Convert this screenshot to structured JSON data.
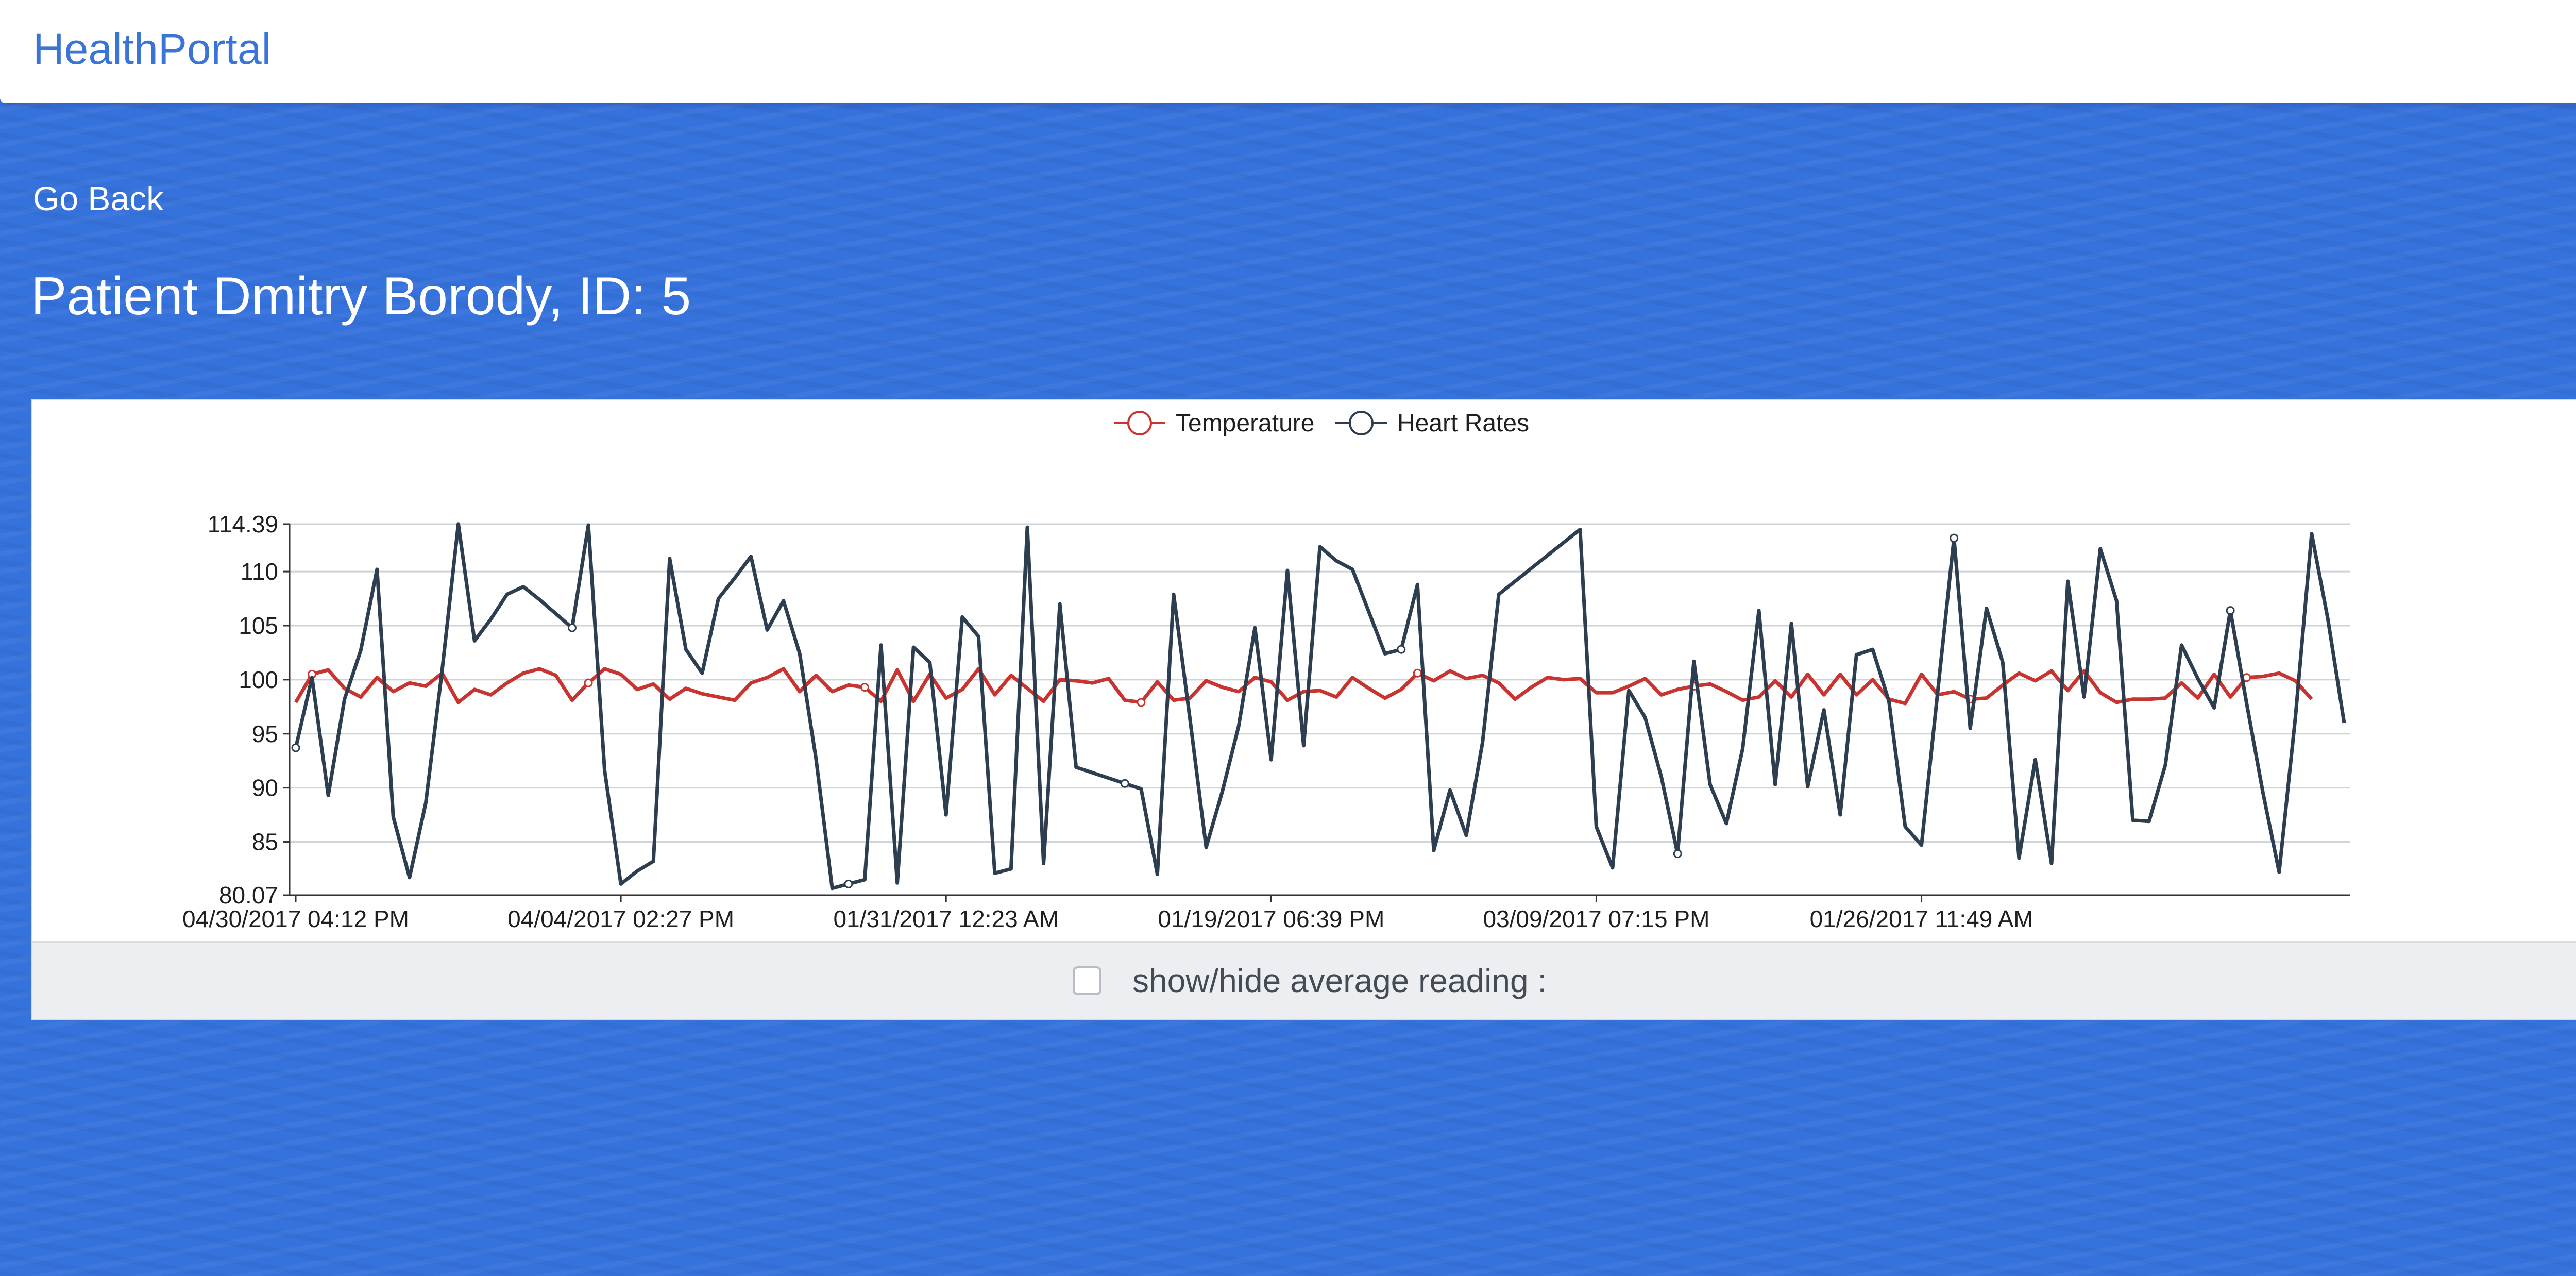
{
  "app": {
    "brand": "HealthPortal"
  },
  "nav": {
    "go_back_label": "Go Back"
  },
  "patient": {
    "title": "Patient Dmitry Borody, ID: 5"
  },
  "controls": {
    "average_toggle_label": "show/hide average reading :",
    "average_checked": false
  },
  "colors": {
    "temperature": "#c8342f",
    "heart_rate": "#2c3e50",
    "accent": "#3572dc"
  },
  "chart_data": {
    "type": "line",
    "legend_position": "top-center",
    "grid": true,
    "title": "",
    "xlabel": "",
    "ylabel": "",
    "ylim": [
      80.07,
      114.39
    ],
    "y_ticks": [
      "80.07",
      "85",
      "90",
      "95",
      "100",
      "105",
      "110",
      "114.39"
    ],
    "x_tick_labels": [
      "04/30/2017 04:12 PM",
      "04/04/2017 02:27 PM",
      "01/31/2017 12:23 AM",
      "01/19/2017 06:39 PM",
      "03/09/2017 07:15 PM",
      "01/26/2017 11:49 AM"
    ],
    "x_tick_indices": [
      0,
      20,
      40,
      60,
      80,
      100
    ],
    "series": [
      {
        "name": "Temperature",
        "values": [
          97.9,
          100.5,
          100.9,
          99.2,
          98.4,
          100.2,
          98.9,
          99.7,
          99.4,
          100.6,
          97.9,
          99.1,
          98.6,
          99.7,
          100.6,
          101.0,
          100.4,
          98.1,
          99.7,
          101.0,
          100.5,
          99.1,
          99.6,
          98.2,
          99.2,
          98.7,
          98.4,
          98.1,
          99.7,
          100.2,
          101.0,
          98.9,
          100.4,
          98.9,
          99.5,
          99.3,
          98.0,
          100.9,
          98.0,
          100.5,
          98.3,
          99.1,
          101.0,
          98.6,
          100.4,
          99.2,
          98.0,
          100.0,
          99.9,
          99.7,
          100.1,
          98.1,
          97.9,
          99.8,
          98.1,
          98.3,
          99.9,
          99.3,
          98.9,
          100.2,
          99.8,
          98.1,
          98.9,
          99.0,
          98.4,
          100.2,
          99.2,
          98.3,
          99.1,
          100.6,
          99.9,
          100.8,
          100.1,
          100.4,
          99.7,
          98.2,
          99.3,
          100.2,
          100.0,
          100.1,
          98.8,
          98.8,
          99.4,
          100.1,
          98.6,
          99.1,
          99.4,
          99.6,
          98.9,
          98.1,
          98.4,
          99.9,
          98.4,
          100.5,
          98.6,
          100.5,
          98.6,
          100.0,
          98.2,
          97.8,
          100.5,
          98.6,
          98.9,
          98.2,
          98.3,
          99.5,
          100.6,
          99.9,
          100.8,
          99.0,
          100.8,
          98.8,
          97.9,
          98.2,
          98.2,
          98.3,
          99.7,
          98.3,
          100.5,
          98.4,
          100.2,
          100.3,
          100.6,
          99.9,
          98.2
        ]
      },
      {
        "name": "Heart Rates",
        "values": [
          93.7,
          100.2,
          89.3,
          98.2,
          102.7,
          110.2,
          87.3,
          81.7,
          88.6,
          100.8,
          114.4,
          103.6,
          105.6,
          107.9,
          108.6,
          107.4,
          106.1,
          104.8,
          114.3,
          91.6,
          81.1,
          82.3,
          83.2,
          111.2,
          102.8,
          100.6,
          107.5,
          109.4,
          111.4,
          104.6,
          107.3,
          102.4,
          92.7,
          80.7,
          81.1,
          81.5,
          103.2,
          81.2,
          103.0,
          101.6,
          87.5,
          105.8,
          104.0,
          82.1,
          82.5,
          114.1,
          83.0,
          107.0,
          91.9,
          91.4,
          90.9,
          90.4,
          89.9,
          82.0,
          107.9,
          96.4,
          84.5,
          89.7,
          95.7,
          104.8,
          92.6,
          110.1,
          93.9,
          112.3,
          111.0,
          110.2,
          106.3,
          102.4,
          102.8,
          108.8,
          84.2,
          89.8,
          85.6,
          94.2,
          107.9,
          109.1,
          110.3,
          111.5,
          112.7,
          113.9,
          86.4,
          82.6,
          99.0,
          96.5,
          91.0,
          83.9,
          101.7,
          90.3,
          86.7,
          93.6,
          106.4,
          90.3,
          105.2,
          90.1,
          97.2,
          87.5,
          102.3,
          102.8,
          98.0,
          86.4,
          84.7,
          98.9,
          113.1,
          95.5,
          106.6,
          101.6,
          83.5,
          92.6,
          83.0,
          109.1,
          98.4,
          112.1,
          107.3,
          87.0,
          86.9,
          92.1,
          103.2,
          100.1,
          97.4,
          106.4,
          97.8,
          89.6,
          82.2,
          96.5,
          113.5,
          105.6,
          96.0
        ]
      }
    ]
  }
}
